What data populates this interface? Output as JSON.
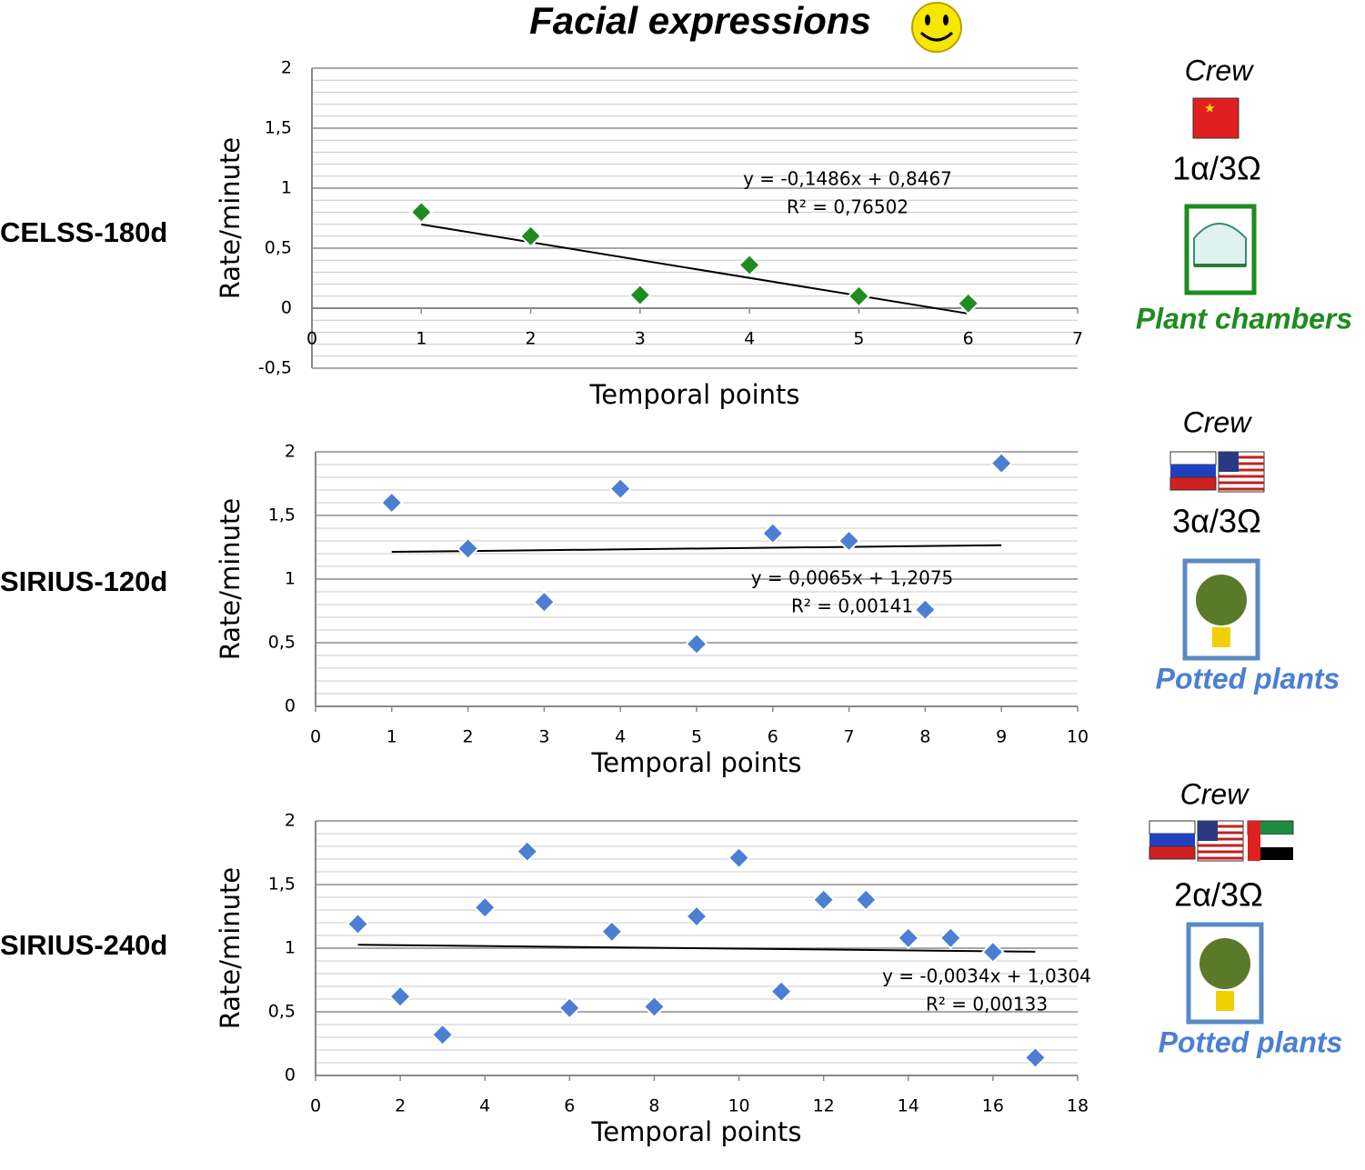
{
  "title": "Facial expressions",
  "chart_data": [
    {
      "type": "scatter",
      "row_label": "CELSS-180d",
      "xlabel": "Temporal points",
      "ylabel": "Rate/minute",
      "x": [
        1,
        2,
        3,
        4,
        5,
        6
      ],
      "values": [
        0.8,
        0.6,
        0.11,
        0.36,
        0.1,
        0.04
      ],
      "color": "#1e8c1e",
      "xlim": [
        0,
        7
      ],
      "xticks": [
        0,
        1,
        2,
        3,
        4,
        5,
        6,
        7
      ],
      "ylim": [
        -0.5,
        2
      ],
      "yticks": [
        {
          "value": -0.5,
          "label": "-0,5"
        },
        0,
        {
          "value": 0.5,
          "label": "0,5"
        },
        1,
        {
          "value": 1.5,
          "label": "1,5"
        },
        2
      ],
      "grid": true,
      "trendline": {
        "slope": -0.1486,
        "intercept": 0.8467,
        "label": "y = -0,1486x + 0,8467",
        "r2_label": "R² = 0,76502"
      },
      "crew": "Crew",
      "ratio": "1α/3Ω",
      "environment": "Plant chambers",
      "environment_color": "#1e8c1e"
    },
    {
      "type": "scatter",
      "row_label": "SIRIUS-120d",
      "xlabel": "Temporal points",
      "ylabel": "Rate/minute",
      "x": [
        1,
        2,
        3,
        4,
        5,
        6,
        7,
        8,
        9
      ],
      "values": [
        1.6,
        1.24,
        0.82,
        1.71,
        0.49,
        1.36,
        1.3,
        0.76,
        1.91
      ],
      "color": "#4a7fd4",
      "xlim": [
        0,
        10
      ],
      "xticks": [
        0,
        1,
        2,
        3,
        4,
        5,
        6,
        7,
        8,
        9,
        10
      ],
      "ylim": [
        0,
        2
      ],
      "yticks": [
        0,
        {
          "value": 0.5,
          "label": "0,5"
        },
        1,
        {
          "value": 1.5,
          "label": "1,5"
        },
        2
      ],
      "grid": true,
      "trendline": {
        "slope": 0.0065,
        "intercept": 1.2075,
        "label": "y = 0,0065x + 1,2075",
        "r2_label": "R² = 0,00141"
      },
      "crew": "Crew",
      "ratio": "3α/3Ω",
      "environment": "Potted plants",
      "environment_color": "#4a7fd4"
    },
    {
      "type": "scatter",
      "row_label": "SIRIUS-240d",
      "xlabel": "Temporal points",
      "ylabel": "Rate/minute",
      "x": [
        1,
        2,
        3,
        4,
        5,
        6,
        7,
        8,
        9,
        10,
        11,
        12,
        13,
        14,
        15,
        16,
        17
      ],
      "values": [
        1.19,
        0.62,
        0.32,
        1.32,
        1.76,
        0.53,
        1.13,
        0.54,
        1.25,
        1.71,
        0.66,
        1.38,
        1.38,
        1.08,
        1.08,
        0.97,
        0.14
      ],
      "color": "#4a7fd4",
      "xlim": [
        0,
        18
      ],
      "xticks": [
        0,
        2,
        4,
        6,
        8,
        10,
        12,
        14,
        16,
        18
      ],
      "ylim": [
        0,
        2
      ],
      "yticks": [
        0,
        {
          "value": 0.5,
          "label": "0,5"
        },
        1,
        {
          "value": 1.5,
          "label": "1,5"
        },
        2
      ],
      "grid": true,
      "trendline": {
        "slope": -0.0034,
        "intercept": 1.0304,
        "label": "y = -0,0034x + 1,0304",
        "r2_label": "R² = 0,00133"
      },
      "crew": "Crew",
      "ratio": "2α/3Ω",
      "environment": "Potted plants",
      "environment_color": "#4a7fd4"
    }
  ]
}
